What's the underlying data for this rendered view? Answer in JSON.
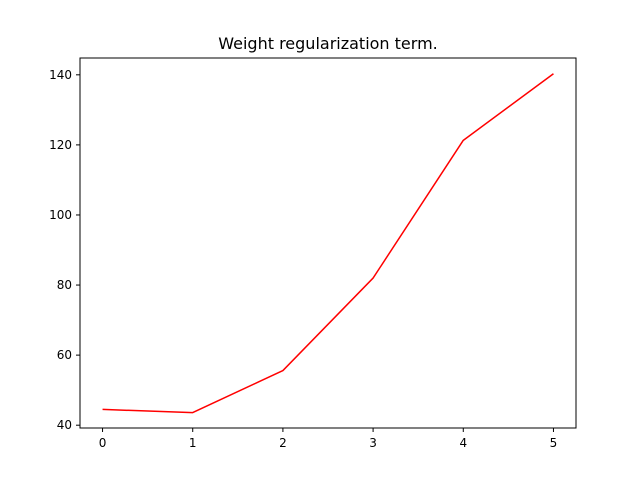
{
  "chart_data": {
    "type": "line",
    "title": "Weight regularization term.",
    "xlabel": "",
    "ylabel": "",
    "x": [
      0,
      1,
      2,
      3,
      4,
      5
    ],
    "series": [
      {
        "values": [
          44.5,
          43.6,
          55.6,
          82.0,
          121.3,
          140.3
        ],
        "color": "#ff0000"
      }
    ],
    "xlim": [
      -0.25,
      5.25
    ],
    "ylim": [
      39.2,
      144.8
    ],
    "xticks": [
      0,
      1,
      2,
      3,
      4,
      5
    ],
    "yticks": [
      40,
      60,
      80,
      100,
      120,
      140
    ],
    "grid": false,
    "legend": "none"
  }
}
